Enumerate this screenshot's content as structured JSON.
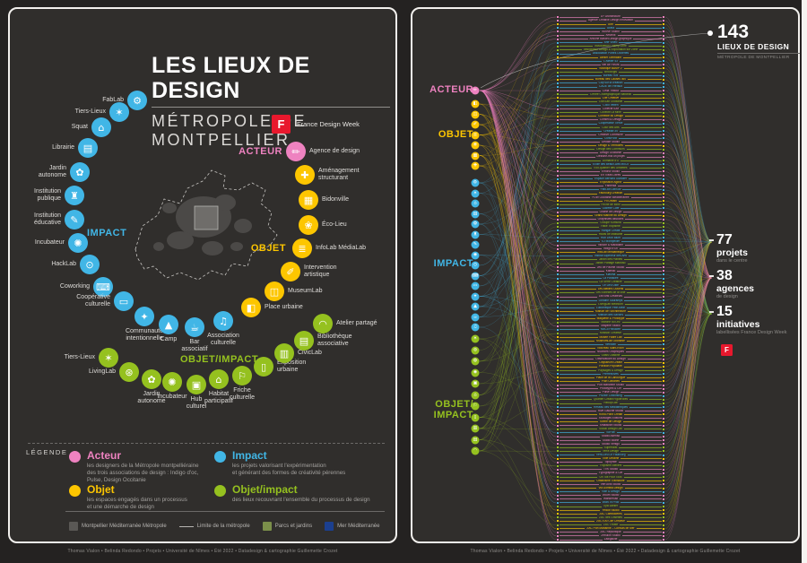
{
  "colors": {
    "pink": "#ee82c0",
    "yellow": "#fdc600",
    "blue": "#41b6e6",
    "green": "#95c11f",
    "red": "#e8182d"
  },
  "credits": "Thomas Vialon • Belinda Redondo • Projets • Université de Nîmes • Été 2022 • Datadesign & cartographie Guillemette Crozet",
  "poster": {
    "title": "LES LIEUX DE DESIGN",
    "subtitle": "MÉTROPOLE DE MONTPELLIER",
    "fdw_label": "France Design Week",
    "fdw_letter": "F",
    "cat_labels": {
      "acteur": "ACTEUR",
      "objet": "OBJET",
      "impact": "IMPACT",
      "objet_impact": "OBJET/IMPACT"
    },
    "lieux": [
      [
        "FabLab",
        "i",
        142,
        102,
        "left",
        "⚙"
      ],
      [
        "Tiers-Lieux",
        "i",
        122,
        115,
        "left",
        "✶"
      ],
      [
        "Squat",
        "i",
        102,
        132,
        "left",
        "⌂"
      ],
      [
        "Librairie",
        "i",
        87,
        155,
        "left",
        "▤"
      ],
      [
        "Jardin\nautonome",
        "i",
        78,
        182,
        "left",
        "✿"
      ],
      [
        "Institution\npublique",
        "i",
        72,
        208,
        "left",
        "♜"
      ],
      [
        "Institution\néducative",
        "i",
        72,
        235,
        "left",
        "✎"
      ],
      [
        "Incubateur",
        "i",
        76,
        261,
        "left",
        "✺"
      ],
      [
        "HackLab",
        "i",
        89,
        285,
        "left",
        "⊙"
      ],
      [
        "Coworking",
        "i",
        104,
        310,
        "left",
        "⌨"
      ],
      [
        "Coopérative\nculturelle",
        "i",
        127,
        326,
        "left",
        "▭"
      ],
      [
        "Communauté\nintentionnelle",
        "i",
        150,
        343,
        "below",
        "✦"
      ],
      [
        "Camp",
        "i",
        177,
        352,
        "below",
        "▲"
      ],
      [
        "Bar\nassociatif",
        "i",
        206,
        355,
        "below",
        "☕"
      ],
      [
        "Association\nculturelle",
        "i",
        238,
        348,
        "below",
        "♫"
      ],
      [
        "Place urbaine",
        "o",
        269,
        333,
        "right",
        "◧"
      ],
      [
        "MuseumLab",
        "o",
        295,
        315,
        "right",
        "◫"
      ],
      [
        "Intervention\nartistique",
        "o",
        313,
        293,
        "right",
        "✐"
      ],
      [
        "InfoLab MédiaLab",
        "o",
        326,
        267,
        "right",
        "≣"
      ],
      [
        "Éco-Lieu",
        "o",
        333,
        241,
        "right",
        "❀"
      ],
      [
        "Bidonville",
        "o",
        333,
        213,
        "right",
        "▦"
      ],
      [
        "Aménagement\nstructurant",
        "o",
        329,
        185,
        "right",
        "✚"
      ],
      [
        "Agence de design",
        "a",
        319,
        159,
        "right",
        "✏"
      ],
      [
        "Tiers-Lieux",
        "g",
        110,
        389,
        "left",
        "✶"
      ],
      [
        "LivingLab",
        "g",
        133,
        405,
        "left",
        "⊛"
      ],
      [
        "Jardin\nautonome",
        "g",
        158,
        413,
        "below",
        "✿"
      ],
      [
        "Incubateur",
        "g",
        181,
        416,
        "below",
        "✺"
      ],
      [
        "Hub\nculturel",
        "g",
        208,
        419,
        "below",
        "▣"
      ],
      [
        "Habitat\nparticipatif",
        "g",
        233,
        413,
        "below",
        "⌂"
      ],
      [
        "Friche\nculturelle",
        "g",
        259,
        409,
        "below",
        "⚐"
      ],
      [
        "Exposition\nurbaine",
        "g",
        283,
        399,
        "right",
        "▯"
      ],
      [
        "CivicLab",
        "g",
        306,
        384,
        "right",
        "▥"
      ],
      [
        "Bibliothèque\nassociative",
        "g",
        328,
        370,
        "right",
        "▤"
      ],
      [
        "Atelier partagé",
        "g",
        349,
        351,
        "right",
        "◠"
      ]
    ],
    "legend": {
      "heading": "LÉGENDE",
      "acteur": {
        "title": "Acteur",
        "desc": "les designers de la Métropole montpelliéraine\ndes trois associations de design : Indigo d'oc,\nPulse, Design Occitanie"
      },
      "impact": {
        "title": "Impact",
        "desc": "les projets valorisant l'expérimentation\net générant des formes de créativité pérennes"
      },
      "objet": {
        "title": "Objet",
        "desc": "les espaces engagés dans un processus\net une démarche de design"
      },
      "objet_impact": {
        "title": "Objet/impact",
        "desc": "des lieux recouvrant l'ensemble du processus de design"
      }
    },
    "map_legend": [
      {
        "label": "Montpellier Méditerranée Métropole",
        "swatch": "#5a5855"
      },
      {
        "label": "Limite de la métropole",
        "swatch": "line"
      },
      {
        "label": "Parcs et jardins",
        "swatch": "#7b8f4a"
      },
      {
        "label": "Mer Méditerranée",
        "swatch": "#1b3f8f"
      }
    ]
  },
  "network": {
    "cat_labels": {
      "acteur": "ACTEUR",
      "objet": "OBJET",
      "impact": "IMPACT",
      "objet_impact": "OBJET/\nIMPACT"
    },
    "total": {
      "value": "143",
      "label": "LIEUX DE DESIGN",
      "sub": "MÉTROPOLE DE MONTPELLIER"
    },
    "stats": [
      {
        "value": "77",
        "label": "projets",
        "sub": "dans le centre"
      },
      {
        "value": "38",
        "label": "agences",
        "sub": "de design"
      },
      {
        "value": "15",
        "label": "initiatives",
        "sub": "labellisées France Design Week"
      }
    ],
    "fdw_letter": "F",
    "items": [
      [
        "A+ Architecture",
        "a"
      ],
      [
        "Agence Créative Design Innovation",
        "a"
      ],
      [
        "Aire",
        "o"
      ],
      [
        "Akela",
        "i"
      ],
      [
        "Alcôve Studio",
        "a"
      ],
      [
        "Amarok",
        "a"
      ],
      [
        "Antoine Bardet Design graphique",
        "a"
      ],
      [
        "Arte Video",
        "i"
      ],
      [
        "Association Champ Libre",
        "g"
      ],
      [
        "Association Design & Exploration sur Zone",
        "g"
      ],
      [
        "Association Portes Ouvertes",
        "i"
      ],
      [
        "Atelier Germaine",
        "o"
      ],
      [
        "L'Atelier 43",
        "i"
      ],
      [
        "Bel Air Fleurs",
        "a"
      ],
      [
        "Boutique BAMP 2",
        "o"
      ],
      [
        "Bricologis",
        "g"
      ],
      [
        "Bureau 404",
        "i"
      ],
      [
        "Bureau des Causes 360",
        "o"
      ],
      [
        "Cap sur la création",
        "i"
      ],
      [
        "CAUE de l'Hérault",
        "i"
      ],
      [
        "Célia Tribout",
        "a"
      ],
      [
        "Centre Chorégraphique National",
        "g"
      ],
      [
        "Cité Créative",
        "o"
      ],
      [
        "CivicLab Occitanie",
        "g"
      ],
      [
        "Coco Velten",
        "i"
      ],
      [
        "Collectif IDM",
        "a"
      ],
      [
        "Collectif La Mine",
        "g"
      ],
      [
        "Comédie du Design",
        "o"
      ],
      [
        "Conseil & Design",
        "a"
      ],
      [
        "Coopérative Tierce",
        "i"
      ],
      [
        "Cour des Arts",
        "g"
      ],
      [
        "Créalab 34",
        "i"
      ],
      [
        "Creative Commune",
        "a"
      ],
      [
        "Cultur'Mix",
        "i"
      ],
      [
        "Dédale Studio",
        "a"
      ],
      [
        "Design & Territoires",
        "o"
      ],
      [
        "Design des Communs",
        "g"
      ],
      [
        "Design Occitanie",
        "a"
      ],
      [
        "Dessine-moi un projet",
        "a"
      ],
      [
        "Domaine d'O",
        "g"
      ],
      [
        "École des Beaux-Arts MoCo",
        "i"
      ],
      [
        "Éco-quartier des Grisettes",
        "g"
      ],
      [
        "Emoha Studio",
        "a"
      ],
      [
        "En Traits Libres",
        "a"
      ],
      [
        "Espace Bernard Glandier",
        "i"
      ],
      [
        "Exposition Agora",
        "o"
      ],
      [
        "Fabbrika",
        "a"
      ],
      [
        "FabLab LabSud",
        "i"
      ],
      [
        "Faubourg Création",
        "o"
      ],
      [
        "FDW Occitanie Méditerranée",
        "a"
      ],
      [
        "Fil Urbain",
        "o"
      ],
      [
        "Friche de Mimi",
        "g"
      ],
      [
        "Gazette Café",
        "i"
      ],
      [
        "Graine de Design",
        "a"
      ],
      [
        "Grand Marché du Design",
        "o"
      ],
      [
        "Graphistes associés",
        "a"
      ],
      [
        "Groupe Komuna",
        "g"
      ],
      [
        "Halle Tropisme",
        "g"
      ],
      [
        "Hangar Créatif",
        "i"
      ],
      [
        "Hauts de Massane",
        "g"
      ],
      [
        "Hub Léon Blum",
        "i"
      ],
      [
        "ICI Montpellier",
        "i"
      ],
      [
        "Illusion & Macadam",
        "a"
      ],
      [
        "Indigo d'Oc",
        "a"
      ],
      [
        "InfoLab Médiathèque",
        "o"
      ],
      [
        "Institut supérieur des Arts",
        "i"
      ],
      [
        "Jardin des Plantes",
        "g"
      ],
      [
        "Jardin Partagé Malbosc",
        "g"
      ],
      [
        "Jeu de Paume Studio",
        "a"
      ],
      [
        "Kaléido",
        "a"
      ],
      [
        "Kiasma",
        "i"
      ],
      [
        "La Panacée",
        "i"
      ],
      [
        "La Serre Créative",
        "g"
      ],
      [
        "Le Lieu Utile",
        "i"
      ],
      [
        "Les Ateliers Ouverts",
        "o"
      ],
      [
        "Les Échelles de la Ville",
        "g"
      ],
      [
        "Lez'Arts Créateurs",
        "a"
      ],
      [
        "Librairie Sauramps",
        "i"
      ],
      [
        "LivingLab MedNum",
        "g"
      ],
      [
        "Ludothèque Pêle-Mêle",
        "i"
      ],
      [
        "Maison de l'Architecture",
        "o"
      ],
      [
        "Maison des Savoirs",
        "i"
      ],
      [
        "Maquette & Prototype",
        "o"
      ],
      [
        "Marché du Lez",
        "g"
      ],
      [
        "Mayane Studio",
        "a"
      ],
      [
        "MoCo Panacée",
        "i"
      ],
      [
        "Mosson Créative",
        "g"
      ],
      [
        "Musée Fabre Lab",
        "o"
      ],
      [
        "MuseumLab Occitanie",
        "o"
      ],
      [
        "Nébulab",
        "i"
      ],
      [
        "Nouveau Saint-Roch",
        "o"
      ],
      [
        "Nuances Graphiques",
        "a"
      ],
      [
        "Oasis Citadine",
        "g"
      ],
      [
        "Observatoire du Design",
        "a"
      ],
      [
        "Odysseum Créatif",
        "o"
      ],
      [
        "Pavillon Populaire",
        "o"
      ],
      [
        "Paysages & Design",
        "g"
      ],
      [
        "Pierresvives",
        "i"
      ],
      [
        "Place de la Canourgue",
        "o"
      ],
      [
        "Plan Cabanes",
        "o"
      ],
      [
        "Port Marianne Studio",
        "a"
      ],
      [
        "Prototypes & Cie",
        "a"
      ],
      [
        "Pulse Design",
        "a"
      ],
      [
        "Puzzle Coworking",
        "i"
      ],
      [
        "Quartier Créatif Figuerolles",
        "g"
      ],
      [
        "Récup'Lab",
        "g"
      ],
      [
        "Réseau des Médiathèques",
        "i"
      ],
      [
        "Rive Gauche Studio",
        "a"
      ],
      [
        "Rond-Point Créatif",
        "o"
      ],
      [
        "Sauvages Éditions",
        "a"
      ],
      [
        "Scène de Design",
        "o"
      ],
      [
        "Smalltown Studio",
        "a"
      ],
      [
        "Social Design Lab",
        "g"
      ],
      [
        "SoFab",
        "i"
      ],
      [
        "Studio Asensò",
        "a"
      ],
      [
        "Studio Baïne",
        "a"
      ],
      [
        "Studio Vertigo",
        "a"
      ],
      [
        "Superstrat",
        "g"
      ],
      [
        "Terra Design",
        "g"
      ],
      [
        "Tiers-Lieu Le Faubourg",
        "i"
      ],
      [
        "Toile Urbaine",
        "o"
      ],
      [
        "Topophile",
        "a"
      ],
      [
        "Tropisme Ateliers",
        "g"
      ],
      [
        "TVK Studio",
        "a"
      ],
      [
        "Typographie & Cie",
        "a"
      ],
      [
        "Un Toit Pour Tous",
        "g"
      ],
      [
        "Urbanisme Transitoire",
        "o"
      ],
      [
        "Vert Anis Studio",
        "a"
      ],
      [
        "Via Domitia Design",
        "o"
      ],
      [
        "Ville & Design",
        "i"
      ],
      [
        "Volum Studio",
        "a"
      ],
      [
        "Wanderlust",
        "a"
      ],
      [
        "Work In Prod",
        "i"
      ],
      [
        "Xylo Atelier",
        "g"
      ],
      [
        "Yellow Studio",
        "o"
      ],
      [
        "ZAC Cambacérès",
        "o"
      ],
      [
        "ZAC des Grisettes",
        "g"
      ],
      [
        "ZAC EAI Cité Créative",
        "o"
      ],
      [
        "ZAC Ovalie",
        "g"
      ],
      [
        "ZAC Port Marianne – Consuls de Mer",
        "o"
      ],
      [
        "ZAC République",
        "a"
      ],
      [
        "Zébulon Studio",
        "a"
      ],
      [
        "Zadigacité",
        "a"
      ]
    ]
  }
}
